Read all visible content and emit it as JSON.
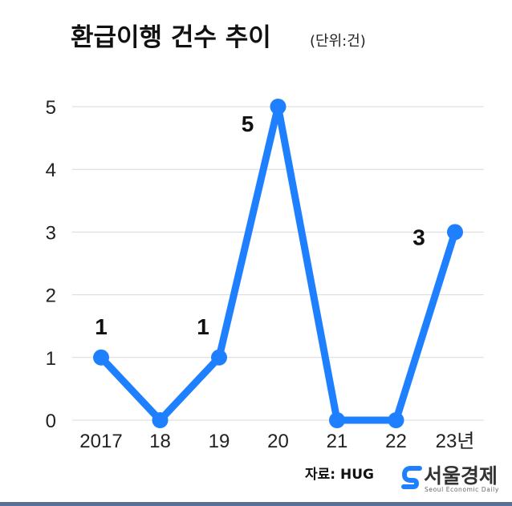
{
  "chart_data": {
    "type": "line",
    "title": "환급이행 건수 추이",
    "unit": "(단위:건)",
    "categories": [
      "2017",
      "18",
      "19",
      "20",
      "21",
      "22",
      "23년"
    ],
    "series": [
      {
        "values": [
          1,
          0,
          1,
          5,
          0,
          0,
          3
        ]
      }
    ],
    "data_labels": [
      {
        "index": 0,
        "text": "1"
      },
      {
        "index": 2,
        "text": "1"
      },
      {
        "index": 3,
        "text": "5"
      },
      {
        "index": 6,
        "text": "3"
      }
    ],
    "y_ticks": [
      "0",
      "1",
      "2",
      "3",
      "4",
      "5"
    ],
    "ylim": [
      0,
      5
    ],
    "grid": true,
    "legend": "none",
    "source": "자료: HUG",
    "colors": {
      "line": "#1f80ff",
      "grid": "#d9d9d9",
      "footer_bar": "#5a6f98"
    }
  },
  "branding": {
    "logo_text": "서울경제",
    "logo_sub": "Seoul Economic Daily",
    "logo_icon": "s-logo-icon",
    "logo_color": "#1f80ff"
  }
}
